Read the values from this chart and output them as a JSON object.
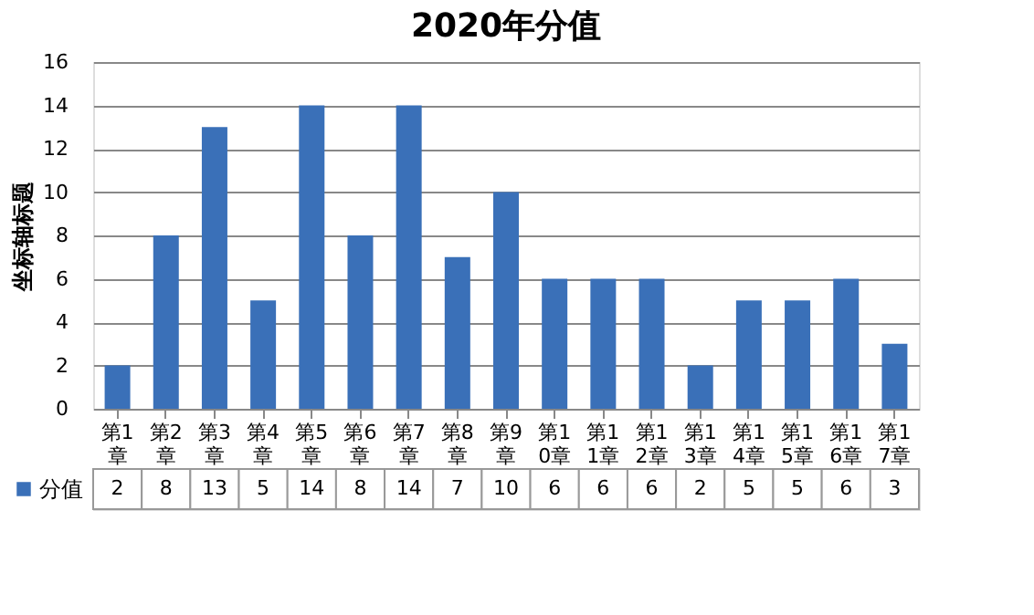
{
  "chart_data": {
    "type": "bar",
    "title": "2020年分值",
    "ylabel": "坐标轴标题",
    "categories": [
      "第1章",
      "第2章",
      "第3章",
      "第4章",
      "第5章",
      "第6章",
      "第7章",
      "第8章",
      "第9章",
      "第10章",
      "第11章",
      "第12章",
      "第13章",
      "第14章",
      "第15章",
      "第16章",
      "第17章"
    ],
    "series": [
      {
        "name": "分值",
        "color": "#3a70b8",
        "values": [
          2,
          8,
          13,
          5,
          14,
          8,
          14,
          7,
          10,
          6,
          6,
          6,
          2,
          5,
          5,
          6,
          3
        ]
      }
    ],
    "ylim": [
      0,
      16
    ],
    "yticks": [
      0,
      2,
      4,
      6,
      8,
      10,
      12,
      14,
      16
    ],
    "grid": "y",
    "data_labels": true
  }
}
